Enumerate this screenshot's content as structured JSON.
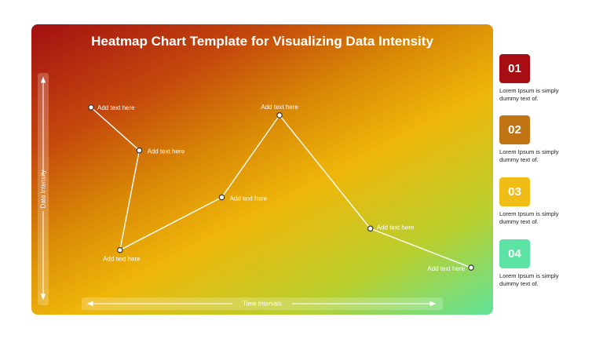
{
  "title": "Heatmap Chart Template for Visualizing Data Intensity",
  "y_axis_label": "Data Intensity",
  "x_axis_label": "Time Intervals",
  "chart_data": {
    "type": "line",
    "title": "Heatmap Chart Template for Visualizing Data Intensity",
    "xlabel": "Time Intervals",
    "ylabel": "Data Intensity",
    "xlim": [
      0,
      100
    ],
    "ylim": [
      0,
      100
    ],
    "points": [
      {
        "x": 0,
        "y": 90,
        "label": "Add text here"
      },
      {
        "x": 12.7,
        "y": 68,
        "label": "Add text here"
      },
      {
        "x": 7.6,
        "y": 17,
        "label": "Add text here"
      },
      {
        "x": 34.4,
        "y": 44,
        "label": "Add text here"
      },
      {
        "x": 49.6,
        "y": 86,
        "label": "Add text here"
      },
      {
        "x": 73.5,
        "y": 28,
        "label": "Add text here"
      },
      {
        "x": 100,
        "y": 8,
        "label": "Add text here"
      }
    ]
  },
  "side_items": [
    {
      "number": "01",
      "text": "Lorem Ipsum is simply dummy text of.",
      "color": "#a80d14"
    },
    {
      "number": "02",
      "text": "Lorem Ipsum is simply dummy text of.",
      "color": "#c07414"
    },
    {
      "number": "03",
      "text": "Lorem Ipsum is simply dummy text of.",
      "color": "#efbd15"
    },
    {
      "number": "04",
      "text": "Lorem Ipsum is simply dummy text of.",
      "color": "#5ce3a4"
    }
  ]
}
